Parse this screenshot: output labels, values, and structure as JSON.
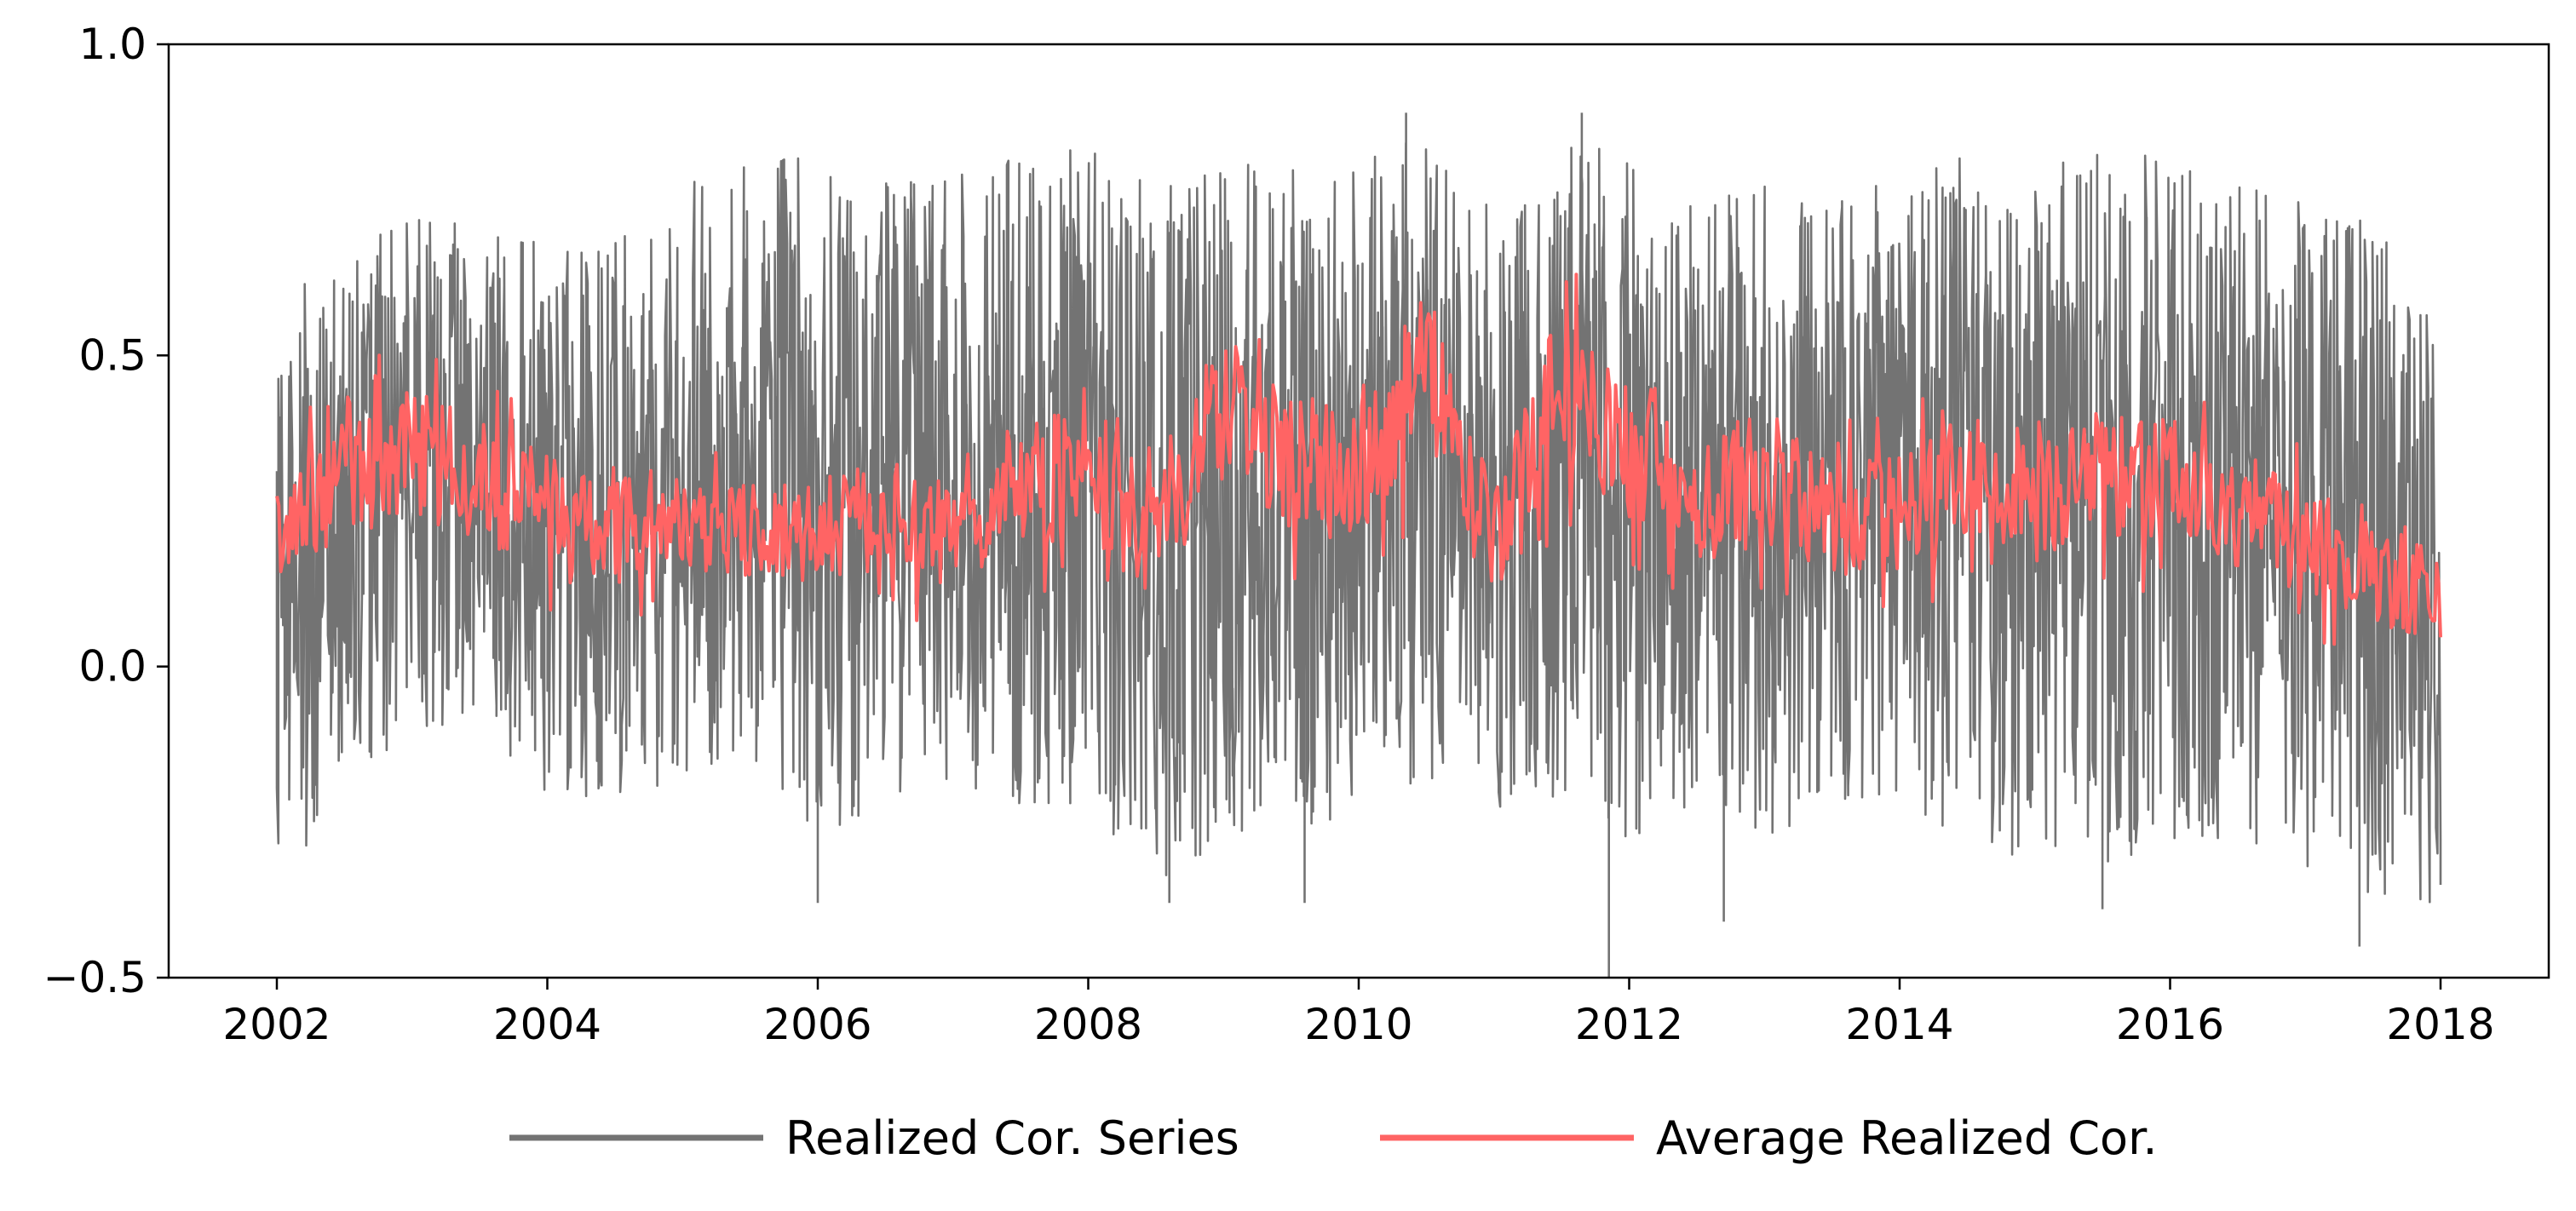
{
  "chart_data": {
    "type": "line",
    "title": "",
    "xlabel": "",
    "ylabel": "",
    "xlim": [
      2001.2,
      2018.8
    ],
    "ylim": [
      -0.5,
      1.0
    ],
    "x_ticks": [
      2002,
      2004,
      2006,
      2008,
      2010,
      2012,
      2014,
      2016,
      2018
    ],
    "x_tick_labels": [
      "2002",
      "2004",
      "2006",
      "2008",
      "2010",
      "2012",
      "2014",
      "2016",
      "2018"
    ],
    "y_ticks": [
      -0.5,
      0.0,
      0.5,
      1.0
    ],
    "y_tick_labels": [
      "−0.5",
      "0.0",
      "0.5",
      "1.0"
    ],
    "grid": false,
    "legend_placement": "bottom-center, below plot",
    "series": [
      {
        "name": "Realized Cor. Series",
        "color": "#737373",
        "x_range": [
          2002.0,
          2018.0
        ],
        "envelope": {
          "x": [
            2002.0,
            2002.5,
            2003.0,
            2003.5,
            2004.0,
            2004.5,
            2005.0,
            2005.5,
            2006.0,
            2006.5,
            2007.0,
            2007.5,
            2008.0,
            2008.5,
            2009.0,
            2009.5,
            2010.0,
            2010.5,
            2011.0,
            2011.5,
            2012.0,
            2012.5,
            2013.0,
            2013.5,
            2014.0,
            2014.5,
            2015.0,
            2015.5,
            2016.0,
            2016.5,
            2017.0,
            2017.5,
            2018.0
          ],
          "upper": [
            0.62,
            0.68,
            0.75,
            0.72,
            0.7,
            0.72,
            0.8,
            0.84,
            0.84,
            0.8,
            0.82,
            0.84,
            0.86,
            0.84,
            0.84,
            0.82,
            0.86,
            0.88,
            0.76,
            0.88,
            0.84,
            0.8,
            0.8,
            0.8,
            0.8,
            0.86,
            0.84,
            0.86,
            0.84,
            0.8,
            0.78,
            0.74,
            0.58
          ],
          "lower": [
            -0.36,
            -0.25,
            -0.15,
            -0.1,
            -0.25,
            -0.25,
            -0.2,
            -0.2,
            -0.3,
            -0.25,
            -0.2,
            -0.25,
            -0.25,
            -0.38,
            -0.3,
            -0.3,
            -0.25,
            -0.2,
            -0.25,
            -0.25,
            -0.3,
            -0.25,
            -0.3,
            -0.25,
            -0.25,
            -0.3,
            -0.35,
            -0.35,
            -0.3,
            -0.3,
            -0.35,
            -0.4,
            -0.4
          ]
        },
        "spikes": [
          {
            "x": 2011.85,
            "y": -0.5
          },
          {
            "x": 2006.0,
            "y": -0.38
          },
          {
            "x": 2008.6,
            "y": -0.38
          },
          {
            "x": 2009.6,
            "y": -0.38
          },
          {
            "x": 2012.7,
            "y": -0.41
          },
          {
            "x": 2015.5,
            "y": -0.39
          },
          {
            "x": 2017.4,
            "y": -0.45
          },
          {
            "x": 2010.35,
            "y": 0.89
          },
          {
            "x": 2011.65,
            "y": 0.89
          }
        ]
      },
      {
        "name": "Average Realized Cor.",
        "color": "#ff6464",
        "x": [
          2002.0,
          2002.5,
          2003.0,
          2003.5,
          2004.0,
          2004.5,
          2005.0,
          2005.5,
          2006.0,
          2006.5,
          2007.0,
          2007.5,
          2008.0,
          2008.5,
          2009.0,
          2009.5,
          2010.0,
          2010.5,
          2011.0,
          2011.5,
          2012.0,
          2012.5,
          2013.0,
          2013.5,
          2014.0,
          2014.5,
          2015.0,
          2015.5,
          2016.0,
          2016.5,
          2017.0,
          2017.5,
          2018.0
        ],
        "values": [
          0.22,
          0.3,
          0.35,
          0.3,
          0.25,
          0.22,
          0.24,
          0.22,
          0.22,
          0.24,
          0.2,
          0.3,
          0.3,
          0.2,
          0.42,
          0.32,
          0.3,
          0.48,
          0.2,
          0.45,
          0.35,
          0.28,
          0.3,
          0.25,
          0.24,
          0.3,
          0.28,
          0.3,
          0.32,
          0.26,
          0.2,
          0.15,
          0.12
        ],
        "spread": [
          0.08,
          0.1,
          0.11,
          0.1,
          0.09,
          0.09,
          0.09,
          0.08,
          0.08,
          0.09,
          0.09,
          0.1,
          0.11,
          0.1,
          0.12,
          0.11,
          0.11,
          0.13,
          0.1,
          0.13,
          0.11,
          0.1,
          0.11,
          0.1,
          0.1,
          0.11,
          0.1,
          0.11,
          0.11,
          0.1,
          0.09,
          0.08,
          0.08
        ]
      }
    ]
  }
}
